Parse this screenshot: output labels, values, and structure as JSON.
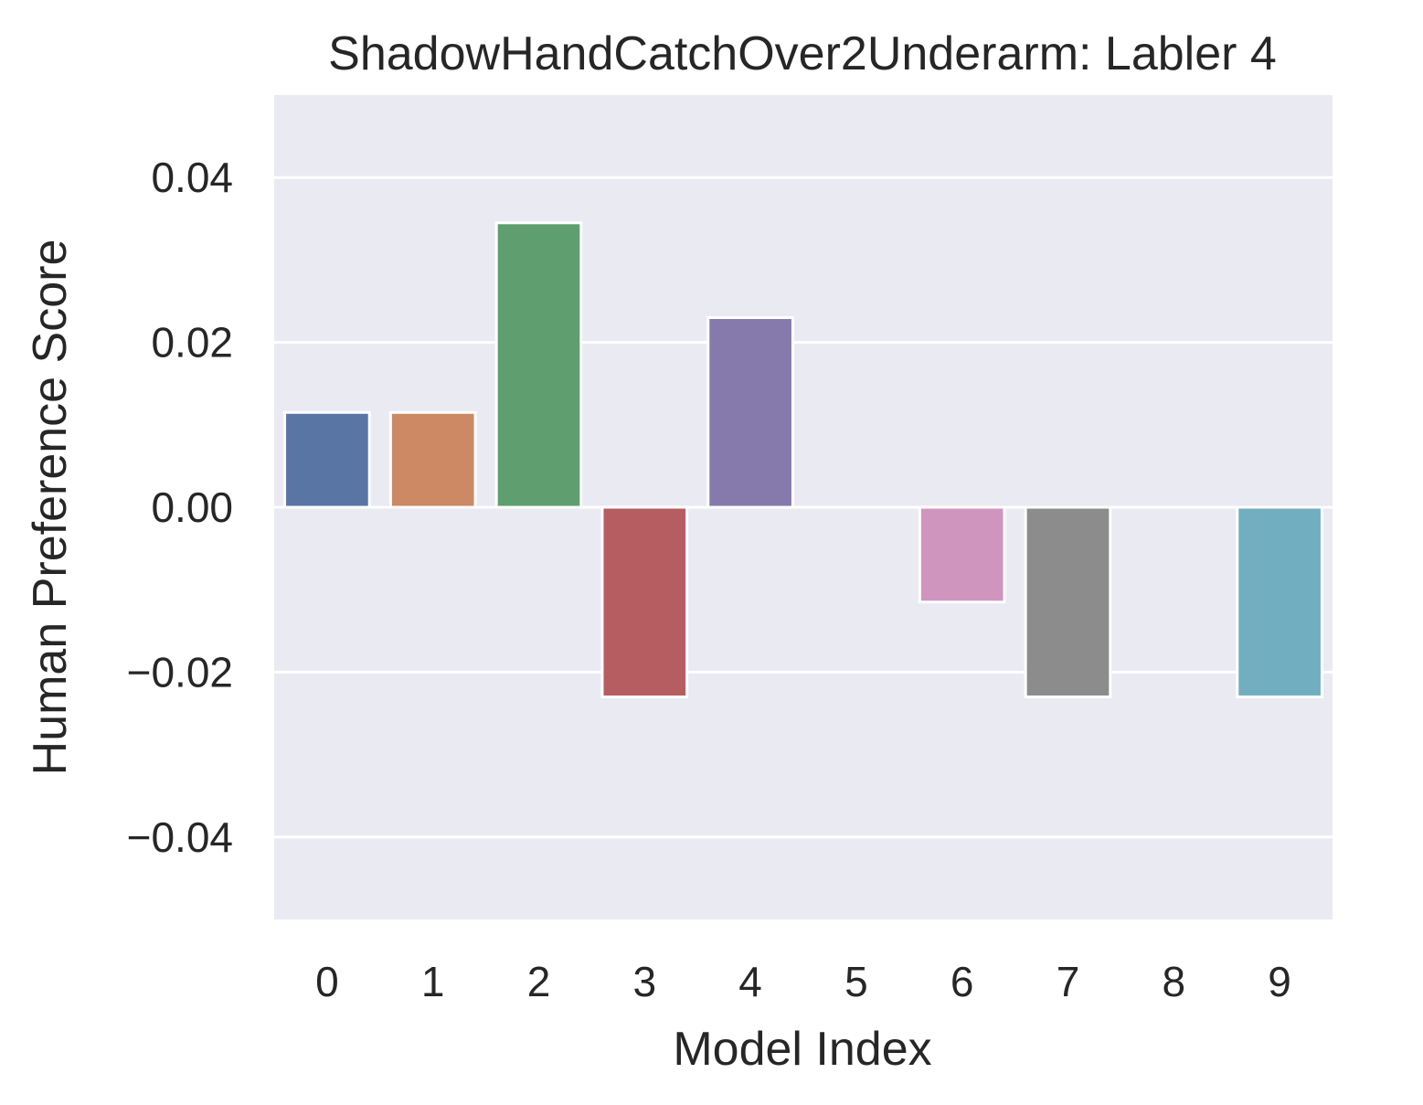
{
  "chart_data": {
    "type": "bar",
    "title": "ShadowHandCatchOver2Underarm: Labler 4",
    "xlabel": "Model Index",
    "ylabel": "Human Preference Score",
    "categories": [
      "0",
      "1",
      "2",
      "3",
      "4",
      "5",
      "6",
      "7",
      "8",
      "9"
    ],
    "values": [
      0.0115,
      0.0115,
      0.0345,
      -0.023,
      0.023,
      0.0,
      -0.0115,
      -0.023,
      0.0,
      -0.023
    ],
    "colors": [
      "#5975a4",
      "#cc8963",
      "#5f9e6e",
      "#b55d60",
      "#857aab",
      "#8d7866",
      "#d095bf",
      "#8c8c8c",
      "#c1b37f",
      "#71aec0"
    ],
    "ylim": [
      -0.05,
      0.05
    ],
    "yticks": [
      -0.04,
      -0.02,
      0.0,
      0.02,
      0.04
    ],
    "ytick_labels": [
      "−0.04",
      "−0.02",
      "0.00",
      "0.02",
      "0.04"
    ],
    "grid": true,
    "background": "#eaeaf2",
    "legend": "none"
  }
}
